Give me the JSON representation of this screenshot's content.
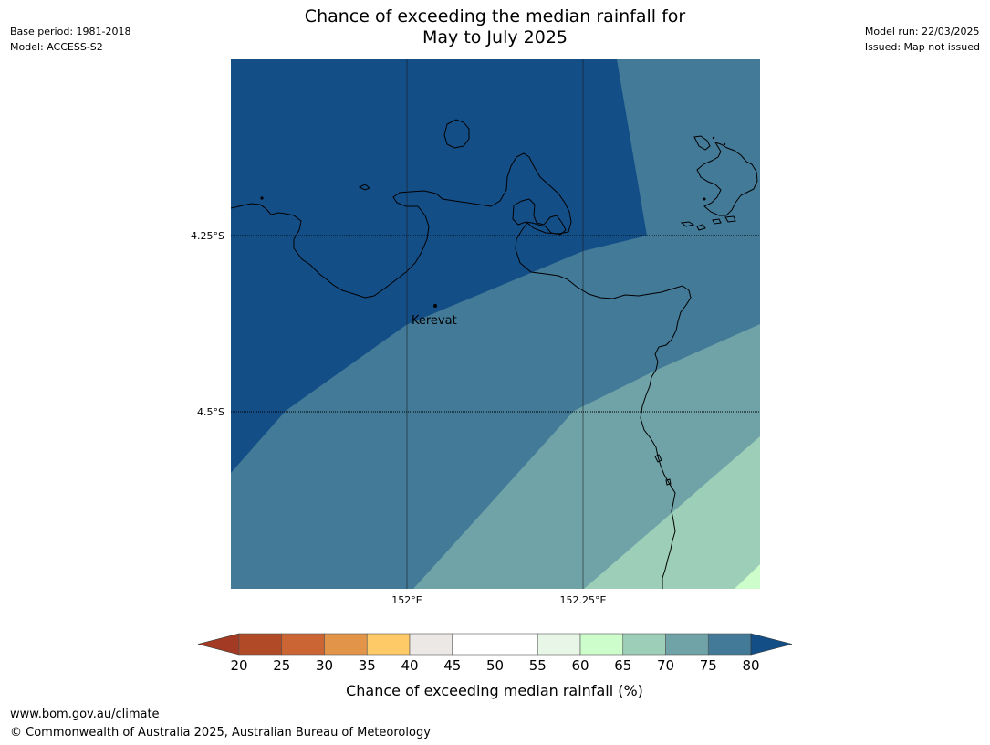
{
  "header": {
    "title_line1": "Chance of exceeding the median rainfall for",
    "title_line2": "May to July 2025",
    "base_period": "Base period: 1981-2018",
    "model": "Model: ACCESS-S2",
    "model_run": "Model run: 22/03/2025",
    "issued": "Issued: Map not issued"
  },
  "map": {
    "lat_labels": [
      "4.25°S",
      "4.5°S"
    ],
    "lon_labels": [
      "152°E",
      "152.25°E"
    ],
    "town": "Kerevat",
    "colors": {
      "c75_80": "#144e87",
      "c70_75": "#427a98",
      "c65_70": "#6fa3a7",
      "c60_65": "#9dcfb8",
      "c55_60": "#ccfdcb"
    }
  },
  "colorbar": {
    "ticks": [
      "20",
      "25",
      "30",
      "35",
      "40",
      "45",
      "50",
      "55",
      "60",
      "65",
      "70",
      "75",
      "80"
    ],
    "colors": [
      "#a33a23",
      "#b14a26",
      "#cc6534",
      "#e29548",
      "#feca68",
      "#ebe8e5",
      "#ffffff",
      "#ffffff",
      "#e8f6e8",
      "#ccfdcb",
      "#9dcfb8",
      "#6fa3a7",
      "#427a98",
      "#144e87"
    ],
    "label": "Chance of exceeding median rainfall (%)"
  },
  "footer": {
    "url": "www.bom.gov.au/climate",
    "copyright": "© Commonwealth of Australia 2025, Australian Bureau of Meteorology"
  }
}
